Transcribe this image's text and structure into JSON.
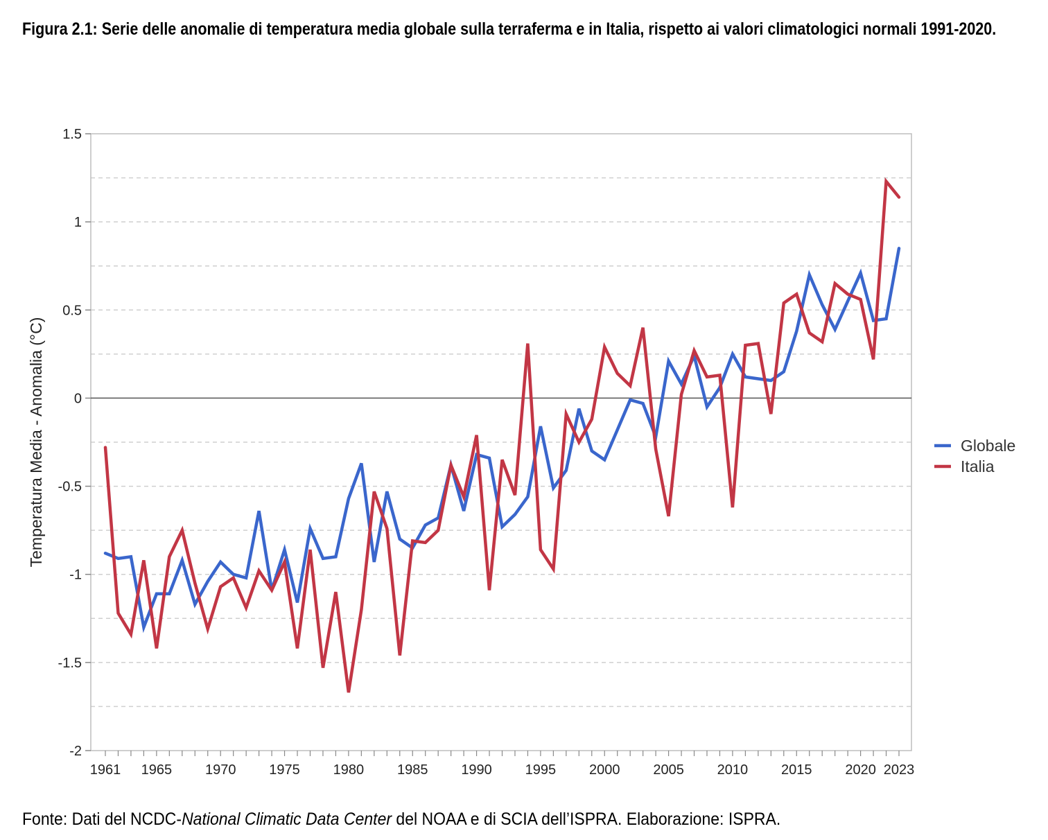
{
  "title": "Figura 2.1: Serie delle anomalie di temperatura media globale sulla terraferma e in Italia, rispetto ai valori climatologici normali 1991-2020.",
  "footer": {
    "prefix": "Fonte: Dati del NCDC-",
    "italic": "National Climatic Data Center",
    "suffix": " del NOAA e di SCIA dell’ISPRA. Elaborazione: ISPRA."
  },
  "chart_data": {
    "type": "line",
    "title": "",
    "xlabel": "",
    "ylabel": "Temperatura Media - Anomalia (°C)",
    "ylim": [
      -2,
      1.5
    ],
    "xlim": [
      1961,
      2023
    ],
    "yticks": [
      "1.5",
      "1",
      "0.5",
      "0",
      "-0.5",
      "-1",
      "-1.5",
      "-2"
    ],
    "xticks": [
      "1961",
      "1965",
      "1970",
      "1975",
      "1980",
      "1985",
      "1990",
      "1995",
      "2000",
      "2005",
      "2010",
      "2015",
      "2020",
      "2023"
    ],
    "grid": "horizontal dashed",
    "legend_position": "right",
    "x": [
      1961,
      1962,
      1963,
      1964,
      1965,
      1966,
      1967,
      1968,
      1969,
      1970,
      1971,
      1972,
      1973,
      1974,
      1975,
      1976,
      1977,
      1978,
      1979,
      1980,
      1981,
      1982,
      1983,
      1984,
      1985,
      1986,
      1987,
      1988,
      1989,
      1990,
      1991,
      1992,
      1993,
      1994,
      1995,
      1996,
      1997,
      1998,
      1999,
      2000,
      2001,
      2002,
      2003,
      2004,
      2005,
      2006,
      2007,
      2008,
      2009,
      2010,
      2011,
      2012,
      2013,
      2014,
      2015,
      2016,
      2017,
      2018,
      2019,
      2020,
      2021,
      2022,
      2023
    ],
    "series": [
      {
        "name": "Globale",
        "color": "#3a66cc",
        "values": [
          -0.88,
          -0.91,
          -0.9,
          -1.3,
          -1.11,
          -1.11,
          -0.92,
          -1.17,
          -1.04,
          -0.93,
          -1.0,
          -1.02,
          -0.64,
          -1.09,
          -0.86,
          -1.16,
          -0.74,
          -0.91,
          -0.9,
          -0.57,
          -0.37,
          -0.93,
          -0.53,
          -0.8,
          -0.85,
          -0.72,
          -0.68,
          -0.38,
          -0.64,
          -0.32,
          -0.34,
          -0.73,
          -0.66,
          -0.56,
          -0.16,
          -0.51,
          -0.41,
          -0.06,
          -0.3,
          -0.35,
          -0.18,
          -0.01,
          -0.03,
          -0.22,
          0.21,
          0.08,
          0.24,
          -0.05,
          0.06,
          0.25,
          0.12,
          0.11,
          0.1,
          0.15,
          0.38,
          0.7,
          0.53,
          0.39,
          0.55,
          0.71,
          0.44,
          0.45,
          0.85
        ]
      },
      {
        "name": "Italia",
        "color": "#c23645",
        "values": [
          -0.28,
          -1.22,
          -1.34,
          -0.92,
          -1.42,
          -0.9,
          -0.75,
          -1.05,
          -1.31,
          -1.07,
          -1.02,
          -1.19,
          -0.98,
          -1.09,
          -0.93,
          -1.42,
          -0.86,
          -1.53,
          -1.1,
          -1.67,
          -1.2,
          -0.53,
          -0.74,
          -1.46,
          -0.81,
          -0.82,
          -0.75,
          -0.38,
          -0.56,
          -0.21,
          -1.09,
          -0.35,
          -0.55,
          0.31,
          -0.86,
          -0.97,
          -0.09,
          -0.25,
          -0.12,
          0.29,
          0.14,
          0.07,
          0.4,
          -0.29,
          -0.67,
          0.02,
          0.27,
          0.12,
          0.13,
          -0.62,
          0.3,
          0.31,
          -0.09,
          0.54,
          0.59,
          0.37,
          0.32,
          0.65,
          0.59,
          0.56,
          0.22,
          1.23,
          1.14
        ]
      }
    ]
  }
}
